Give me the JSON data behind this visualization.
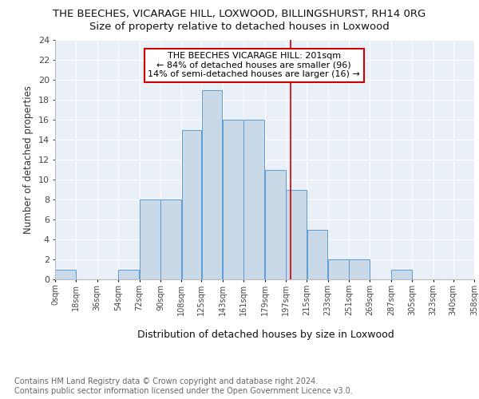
{
  "title1": "THE BEECHES, VICARAGE HILL, LOXWOOD, BILLINGSHURST, RH14 0RG",
  "title2": "Size of property relative to detached houses in Loxwood",
  "xlabel": "Distribution of detached houses by size in Loxwood",
  "ylabel": "Number of detached properties",
  "footnote": "Contains HM Land Registry data © Crown copyright and database right 2024.\nContains public sector information licensed under the Open Government Licence v3.0.",
  "bar_left_edges": [
    0,
    18,
    36,
    54,
    72,
    90,
    108,
    125,
    143,
    161,
    179,
    197,
    215,
    233,
    251,
    269,
    287,
    305,
    323,
    340
  ],
  "bar_widths": [
    18,
    18,
    18,
    18,
    18,
    18,
    17,
    18,
    18,
    18,
    18,
    18,
    18,
    18,
    18,
    18,
    18,
    18,
    17,
    18
  ],
  "bar_heights": [
    1,
    0,
    0,
    1,
    8,
    8,
    15,
    19,
    16,
    16,
    11,
    9,
    5,
    2,
    2,
    0,
    1,
    0,
    0,
    0
  ],
  "bar_color": "#c9d9e8",
  "bar_edge_color": "#5b9bd5",
  "vline_x": 201,
  "vline_color": "#cc0000",
  "annotation_text": "THE BEECHES VICARAGE HILL: 201sqm\n← 84% of detached houses are smaller (96)\n14% of semi-detached houses are larger (16) →",
  "annotation_box_color": "#ffffff",
  "annotation_box_edge": "#cc0000",
  "xlim": [
    0,
    358
  ],
  "ylim": [
    0,
    24
  ],
  "yticks": [
    0,
    2,
    4,
    6,
    8,
    10,
    12,
    14,
    16,
    18,
    20,
    22,
    24
  ],
  "xtick_labels": [
    "0sqm",
    "18sqm",
    "36sqm",
    "54sqm",
    "72sqm",
    "90sqm",
    "108sqm",
    "125sqm",
    "143sqm",
    "161sqm",
    "179sqm",
    "197sqm",
    "215sqm",
    "233sqm",
    "251sqm",
    "269sqm",
    "287sqm",
    "305sqm",
    "323sqm",
    "340sqm",
    "358sqm"
  ],
  "xtick_positions": [
    0,
    18,
    36,
    54,
    72,
    90,
    108,
    125,
    143,
    161,
    179,
    197,
    215,
    233,
    251,
    269,
    287,
    305,
    323,
    340,
    358
  ],
  "bg_color": "#eaf0f8",
  "grid_color": "#ffffff",
  "title1_fontsize": 9.5,
  "title2_fontsize": 9.5,
  "annotation_fontsize": 8.0,
  "footnote_fontsize": 7.0,
  "xlabel_fontsize": 9.0,
  "ylabel_fontsize": 8.5
}
